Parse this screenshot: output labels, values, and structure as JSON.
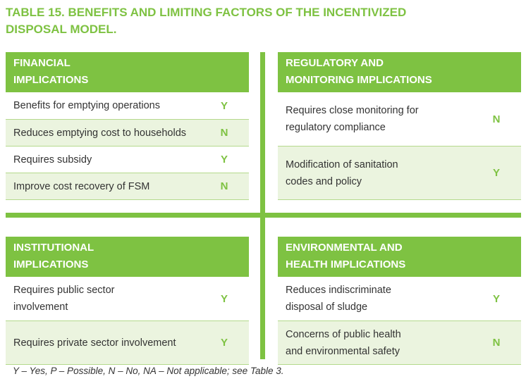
{
  "title_line1": "TABLE 15. BENEFITS AND LIMITING FACTORS OF THE INCENTIVIZED",
  "title_line2": "DISPOSAL MODEL.",
  "financial": {
    "heading_line1": "FINANCIAL",
    "heading_line2": "IMPLICATIONS",
    "rows": [
      {
        "label": "Benefits for emptying operations",
        "value": "Y"
      },
      {
        "label": "Reduces emptying cost to households",
        "value": "N"
      },
      {
        "label": "Requires subsidy",
        "value": "Y"
      },
      {
        "label": "Improve cost recovery of FSM",
        "value": "N"
      }
    ]
  },
  "regulatory": {
    "heading_line1": "REGULATORY AND",
    "heading_line2": "MONITORING IMPLICATIONS",
    "rows": [
      {
        "label_line1": "Requires close monitoring for",
        "label_line2": "regulatory compliance",
        "value": "N"
      },
      {
        "label_line1": "Modification of sanitation",
        "label_line2": "codes and policy",
        "value": "Y"
      }
    ]
  },
  "institutional": {
    "heading_line1": "INSTITUTIONAL",
    "heading_line2": "IMPLICATIONS",
    "rows": [
      {
        "label_line1": "Requires public sector",
        "label_line2": "involvement",
        "value": "Y"
      },
      {
        "label_line1": "Requires private sector involvement",
        "label_line2": "",
        "value": "Y"
      }
    ]
  },
  "environmental": {
    "heading_line1": "ENVIRONMENTAL AND",
    "heading_line2": "HEALTH IMPLICATIONS",
    "rows": [
      {
        "label_line1": "Reduces indiscriminate",
        "label_line2": "disposal of sludge",
        "value": "Y"
      },
      {
        "label_line1": "Concerns of public health",
        "label_line2": "and environmental safety",
        "value": "N"
      }
    ]
  },
  "footnote": "Y – Yes, P – Possible, N – No, NA – Not applicable; see Table 3.",
  "colors": {
    "accent": "#7ec242",
    "row_alt": "#ebf4df",
    "text": "#333333"
  }
}
